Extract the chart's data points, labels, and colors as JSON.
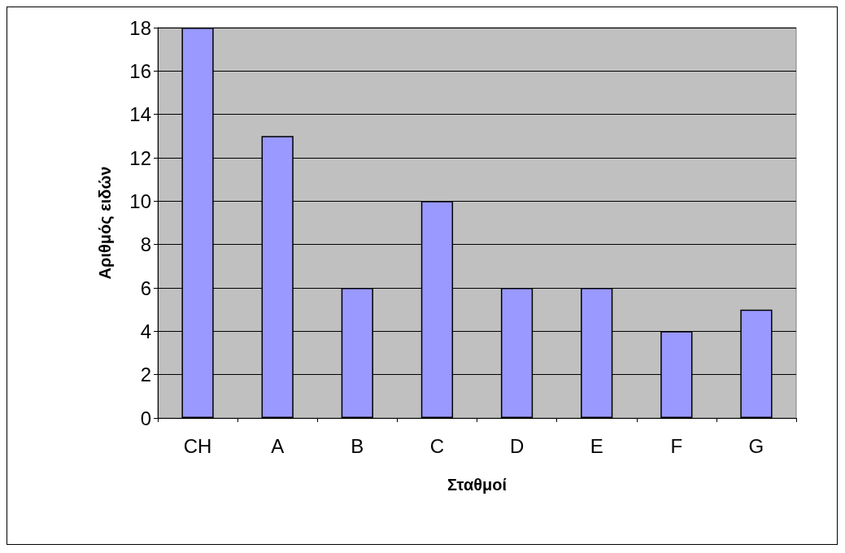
{
  "chart_data": {
    "type": "bar",
    "xlabel": "Σταθμοί",
    "ylabel": "Αριθμός ειδών",
    "categories": [
      "CH",
      "A",
      "B",
      "C",
      "D",
      "E",
      "F",
      "G"
    ],
    "values": [
      18,
      13,
      6,
      10,
      6,
      6,
      4,
      5
    ],
    "color": "#9999ff",
    "ylim": [
      0,
      18
    ],
    "yticks": [
      0,
      2,
      4,
      6,
      8,
      10,
      12,
      14,
      16,
      18
    ],
    "grid": "y"
  }
}
